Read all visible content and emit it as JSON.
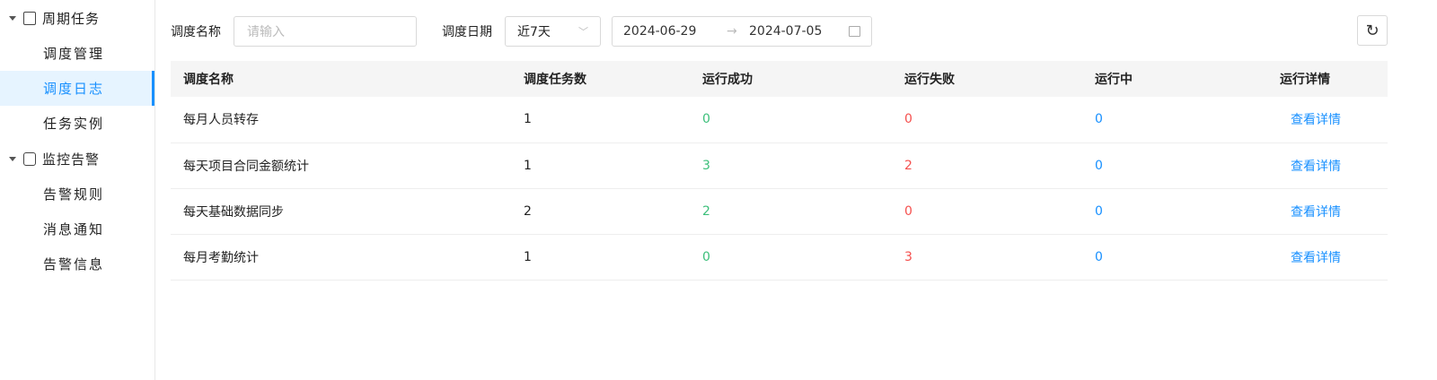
{
  "sidebar": {
    "groups": [
      {
        "label": "周期任务",
        "icon": "calendar-icon",
        "items": [
          "调度管理",
          "调度日志",
          "任务实例"
        ]
      },
      {
        "label": "监控告警",
        "icon": "monitor-icon",
        "items": [
          "告警规则",
          "消息通知",
          "告警信息"
        ]
      }
    ],
    "active": "调度日志"
  },
  "filters": {
    "name_label": "调度名称",
    "name_placeholder": "请输入",
    "date_label": "调度日期",
    "range_select": "近7天",
    "start": "2024-06-29",
    "separator": "→",
    "end": "2024-07-05"
  },
  "table": {
    "headers": [
      "调度名称",
      "调度任务数",
      "运行成功",
      "运行失败",
      "运行中",
      "运行详情"
    ],
    "rows": [
      {
        "name": "每月人员转存",
        "tasks": "1",
        "success": "0",
        "fail": "0",
        "running": "0",
        "detail": "查看详情"
      },
      {
        "name": "每天项目合同金额统计",
        "tasks": "1",
        "success": "3",
        "fail": "2",
        "running": "0",
        "detail": "查看详情"
      },
      {
        "name": "每天基础数据同步",
        "tasks": "2",
        "success": "2",
        "fail": "0",
        "running": "0",
        "detail": "查看详情"
      },
      {
        "name": "每月考勤统计",
        "tasks": "1",
        "success": "0",
        "fail": "3",
        "running": "0",
        "detail": "查看详情"
      }
    ]
  },
  "colors": {
    "accent": "#1890ff",
    "success": "#3cbf7a",
    "fail": "#f5504e"
  }
}
